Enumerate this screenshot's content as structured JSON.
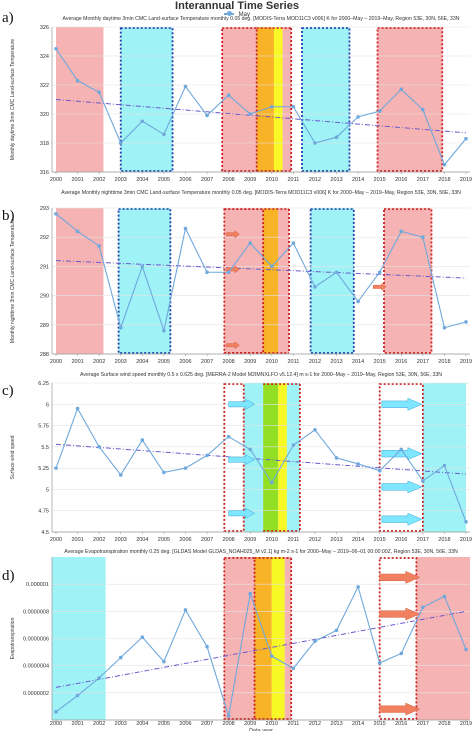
{
  "header": {
    "title": "Interannual Time Series",
    "legend": "May"
  },
  "colors": {
    "series": "#6fa8dc",
    "trend": "#6a5acd",
    "pink": "#f4a6a6",
    "cyan": "#8ef0f4",
    "orange": "#f7a600",
    "yellow": "#f7f700",
    "green": "#80d900",
    "blue_border": "#1f3fae",
    "red_border": "#cc1f1f",
    "arrow_salmon": "#f08060",
    "arrow_cyan": "#7fe6ff"
  },
  "chart_data": [
    {
      "type": "line",
      "panel_letter": "a)",
      "title": "Average Monthly daytime 3min CMC Land-surface Temperature monthly 0.05 deg. [MODIS-Terra MOD11C3 v006] K for 2000–May – 2019–May, Region 53E, 30N, 56E, 33N",
      "ylabel": "Monthly daytime 3min CMC Land-surface Temperature",
      "xlabel": "",
      "x": [
        2000,
        2001,
        2002,
        2003,
        2004,
        2005,
        2006,
        2007,
        2008,
        2009,
        2010,
        2011,
        2012,
        2013,
        2014,
        2015,
        2016,
        2017,
        2018,
        2019
      ],
      "series": [
        {
          "name": "May",
          "values": [
            324.5,
            322.3,
            321.5,
            318.0,
            319.5,
            318.6,
            321.9,
            319.9,
            321.3,
            320.0,
            320.5,
            320.5,
            318.0,
            318.4,
            319.8,
            320.2,
            321.7,
            320.3,
            316.5,
            318.3
          ]
        }
      ],
      "trend": [
        321.0,
        318.7
      ],
      "ylim": [
        316,
        326
      ],
      "yticks": [
        316,
        318,
        320,
        322,
        324,
        326
      ],
      "shading": [
        {
          "from": 2000,
          "to": 2002.2,
          "color": "pink"
        },
        {
          "from": 2003,
          "to": 2005.4,
          "color": "cyan",
          "border": "blue_border"
        },
        {
          "from": 2007.7,
          "to": 2009.3,
          "color": "pink",
          "border": "red_border"
        },
        {
          "from": 2009.3,
          "to": 2010.1,
          "color": "orange"
        },
        {
          "from": 2010.1,
          "to": 2010.5,
          "color": "yellow"
        },
        {
          "from": 2010.5,
          "to": 2010.9,
          "color": "pink",
          "border_end": true
        },
        {
          "from": 2011.4,
          "to": 2013.6,
          "color": "cyan",
          "border": "blue_border"
        },
        {
          "from": 2014.9,
          "to": 2017.9,
          "color": "pink",
          "border": "red_border"
        }
      ],
      "arrows": []
    },
    {
      "type": "line",
      "panel_letter": "b)",
      "title": "Average Monthly nighttime 3min CMC Land-surface Temperature monthly 0.05 deg. [MODIS-Terra MOD11C3 v006] K for 2000–May – 2019–May, Region 53E, 30N, 56E, 33N",
      "ylabel": "Monthly nighttime 3min CMC Land-surface Temperature",
      "xlabel": "",
      "x": [
        2000,
        2001,
        2002,
        2003,
        2004,
        2005,
        2006,
        2007,
        2008,
        2009,
        2010,
        2011,
        2012,
        2013,
        2014,
        2015,
        2016,
        2017,
        2018,
        2019
      ],
      "series": [
        {
          "name": "May",
          "values": [
            292.8,
            292.2,
            291.7,
            288.9,
            291.0,
            288.8,
            292.3,
            290.8,
            290.8,
            291.8,
            291.0,
            291.8,
            290.3,
            290.8,
            289.8,
            290.8,
            292.2,
            292.0,
            288.9,
            289.1
          ]
        }
      ],
      "trend": [
        291.2,
        290.6
      ],
      "ylim": [
        288,
        293
      ],
      "yticks": [
        288,
        289,
        290,
        291,
        292,
        293
      ],
      "shading": [
        {
          "from": 2000,
          "to": 2002.2,
          "color": "pink"
        },
        {
          "from": 2002.9,
          "to": 2005.3,
          "color": "cyan",
          "border": "blue_border"
        },
        {
          "from": 2007.8,
          "to": 2009.6,
          "color": "pink",
          "border": "red_border"
        },
        {
          "from": 2009.6,
          "to": 2010.3,
          "color": "orange"
        },
        {
          "from": 2010.3,
          "to": 2010.8,
          "color": "pink",
          "border_end": true
        },
        {
          "from": 2011.8,
          "to": 2013.8,
          "color": "cyan",
          "border": "blue_border"
        },
        {
          "from": 2015.2,
          "to": 2017.4,
          "color": "pink",
          "border": "red_border"
        }
      ],
      "arrows": [
        {
          "x": 2007.9,
          "y": 292.1,
          "color": "arrow_salmon",
          "size": "small"
        },
        {
          "x": 2007.9,
          "y": 290.9,
          "color": "arrow_salmon",
          "size": "small"
        },
        {
          "x": 2007.9,
          "y": 288.3,
          "color": "arrow_salmon",
          "size": "small"
        },
        {
          "x": 2014.7,
          "y": 290.3,
          "color": "arrow_salmon",
          "size": "small"
        }
      ]
    },
    {
      "type": "line",
      "panel_letter": "c)",
      "title": "Average Surface wind speed monthly 0.5 x 0.625 deg. [MERRA-2 Model M2IMNXLFO v5.12.4] m s-1 for 2000–May – 2019–May, Region 53E, 30N, 56E, 33N",
      "ylabel": "Surface wind speed",
      "xlabel": "",
      "x": [
        2000,
        2001,
        2002,
        2003,
        2004,
        2005,
        2006,
        2007,
        2008,
        2009,
        2010,
        2011,
        2012,
        2013,
        2014,
        2015,
        2016,
        2017,
        2018,
        2019
      ],
      "series": [
        {
          "name": "May",
          "values": [
            5.25,
            5.95,
            5.5,
            5.17,
            5.58,
            5.2,
            5.25,
            5.4,
            5.62,
            5.47,
            5.08,
            5.52,
            5.7,
            5.37,
            5.3,
            5.22,
            5.47,
            5.1,
            5.28,
            4.62
          ]
        }
      ],
      "trend": [
        5.53,
        5.18
      ],
      "ylim": [
        4.5,
        6.25
      ],
      "yticks": [
        4.5,
        4.75,
        5,
        5.25,
        5.5,
        5.75,
        6,
        6.25
      ],
      "shading": [
        {
          "from": 2007.8,
          "to": 2008.7,
          "color": "none",
          "border": "red_border"
        },
        {
          "from": 2008.7,
          "to": 2009.6,
          "color": "cyan"
        },
        {
          "from": 2009.6,
          "to": 2010.3,
          "color": "green"
        },
        {
          "from": 2010.3,
          "to": 2010.7,
          "color": "yellow"
        },
        {
          "from": 2010.7,
          "to": 2011.3,
          "color": "cyan",
          "border_end": true
        },
        {
          "from": 2015.0,
          "to": 2017.0,
          "color": "none",
          "border": "red_border"
        },
        {
          "from": 2017.0,
          "to": 2019.0,
          "color": "cyan"
        }
      ],
      "arrows": [
        {
          "x": 2008.0,
          "y": 6.0,
          "color": "arrow_cyan",
          "size": "medium"
        },
        {
          "x": 2008.0,
          "y": 5.35,
          "color": "arrow_cyan",
          "size": "medium"
        },
        {
          "x": 2008.0,
          "y": 4.72,
          "color": "arrow_cyan",
          "size": "medium"
        },
        {
          "x": 2015.1,
          "y": 6.0,
          "color": "arrow_cyan",
          "size": "large"
        },
        {
          "x": 2015.1,
          "y": 5.42,
          "color": "arrow_cyan",
          "size": "large"
        },
        {
          "x": 2015.1,
          "y": 5.03,
          "color": "arrow_cyan",
          "size": "large"
        },
        {
          "x": 2015.1,
          "y": 4.65,
          "color": "arrow_cyan",
          "size": "large"
        }
      ]
    },
    {
      "type": "line",
      "panel_letter": "d)",
      "title": "Average Evapotranspiration monthly 0.25 deg. [GLDAS Model GLDAS_NOAH025_M v2.1] kg m-2 s-1 for 2000–May – 2019–06–01 00:00:00Z, Region 53E, 30N, 56E, 33N",
      "ylabel": "Evapotranspiration",
      "xlabel": "Data year",
      "x": [
        2000,
        2001,
        2002,
        2003,
        2004,
        2005,
        2006,
        2007,
        2008,
        2009,
        2010,
        2011,
        2012,
        2013,
        2014,
        2015,
        2016,
        2017,
        2018,
        2019
      ],
      "series": [
        {
          "name": "May",
          "values": [
            6e-08,
            1.8e-07,
            3.1e-07,
            4.6e-07,
            6.1e-07,
            4.3e-07,
            8.1e-07,
            5.4e-07,
            3e-08,
            9.3e-07,
            4.7e-07,
            3.8e-07,
            5.8e-07,
            6.6e-07,
            9.8e-07,
            4.2e-07,
            4.9e-07,
            8.3e-07,
            9.1e-07,
            5.2e-07
          ]
        }
      ],
      "trend": [
        2.4e-07,
        8e-07
      ],
      "ylim": [
        0,
        1.2e-06
      ],
      "yticks": [
        2e-07,
        4e-07,
        6e-07,
        8e-07,
        1e-06
      ],
      "ytick_labels": [
        "0.0000002",
        "0.0000004",
        "0.0000006",
        "0.0000008",
        "0.000001"
      ],
      "shading": [
        {
          "from": 1999.8,
          "to": 2002.3,
          "color": "cyan"
        },
        {
          "from": 2007.8,
          "to": 2009.2,
          "color": "pink",
          "border": "red_border"
        },
        {
          "from": 2009.2,
          "to": 2010.0,
          "color": "orange"
        },
        {
          "from": 2010.0,
          "to": 2010.6,
          "color": "yellow"
        },
        {
          "from": 2010.6,
          "to": 2010.9,
          "color": "pink",
          "border_end": true
        },
        {
          "from": 2015.0,
          "to": 2016.7,
          "color": "none",
          "border": "red_border"
        },
        {
          "from": 2016.7,
          "to": 2019.2,
          "color": "pink"
        }
      ],
      "arrows": [
        {
          "x": 2015.0,
          "y": 1.05e-06,
          "color": "arrow_salmon",
          "size": "large"
        },
        {
          "x": 2015.0,
          "y": 7.8e-07,
          "color": "arrow_salmon",
          "size": "large"
        },
        {
          "x": 2015.0,
          "y": 8e-08,
          "color": "arrow_salmon",
          "size": "large"
        }
      ]
    }
  ]
}
